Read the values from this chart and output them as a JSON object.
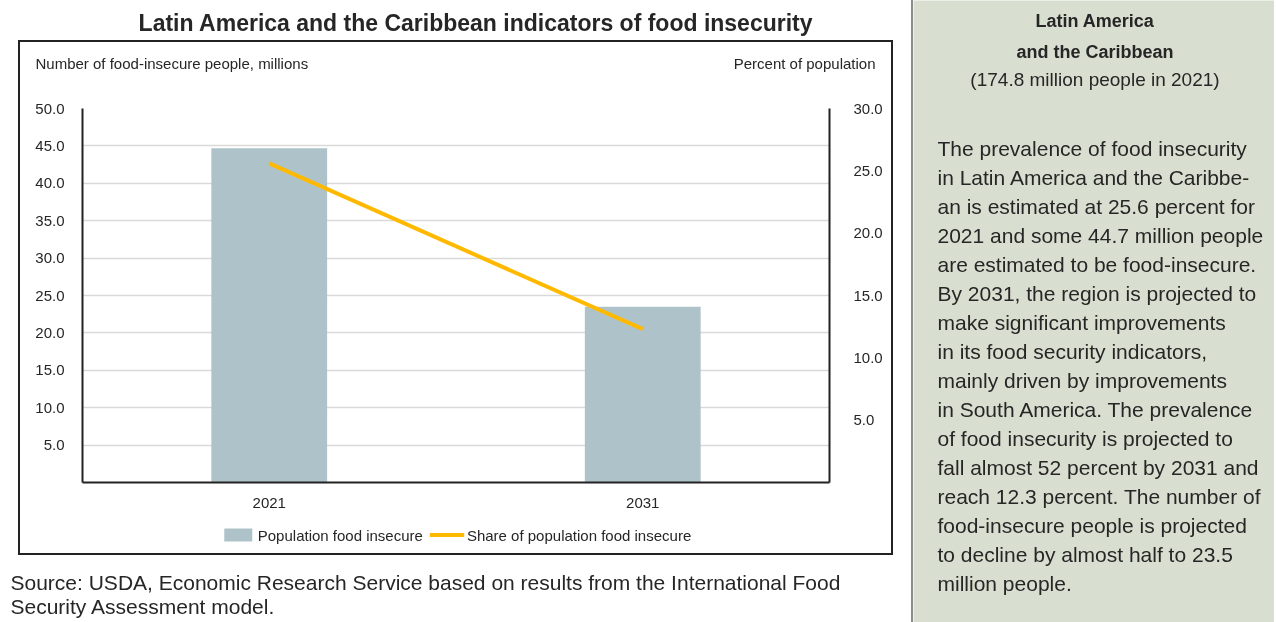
{
  "chart_data": [
    {
      "type": "bar",
      "title": "Latin America and the Caribbean indicators of food insecurity",
      "ylabel": "Number of food-insecure people, millions",
      "y2label": "Percent of population",
      "categories": [
        "2021",
        "2031"
      ],
      "series": [
        {
          "name": "Population food insecure",
          "color": "#adc3c9",
          "values": [
            44.7,
            23.5
          ]
        },
        {
          "name": "Share of population food insecure",
          "type": "line",
          "axis": "y2",
          "color": "#ffb900",
          "values": [
            25.6,
            12.3
          ]
        }
      ],
      "ylim": [
        0,
        50
      ],
      "yticks": [
        {
          "value": 5,
          "label": "5.0"
        },
        {
          "value": 10,
          "label": "10.0"
        },
        {
          "value": 15,
          "label": "15.0"
        },
        {
          "value": 20,
          "label": "20.0"
        },
        {
          "value": 25,
          "label": "25.0"
        },
        {
          "value": 30,
          "label": "30.0"
        },
        {
          "value": 35,
          "label": "35.0"
        },
        {
          "value": 40,
          "label": "40.0"
        },
        {
          "value": 45,
          "label": "45.0"
        },
        {
          "value": 50,
          "label": "50.0"
        }
      ],
      "y2lim": [
        0,
        30
      ],
      "y2ticks": [
        {
          "value": 5,
          "label": "5.0"
        },
        {
          "value": 10,
          "label": "10.0"
        },
        {
          "value": 15,
          "label": "15.0"
        },
        {
          "value": 20,
          "label": "20.0"
        },
        {
          "value": 25,
          "label": "25.0"
        },
        {
          "value": 30,
          "label": "30.0"
        }
      ],
      "grid": "y",
      "legend": "bottom",
      "annotations": [
        "Source: USDA, Economic Research Service based on results from the International Food Security Assessment model."
      ]
    },
    {
      "type": "other",
      "title": "Latin America\nand the Caribbean",
      "subtitle": "(174.8 million people in 2021)",
      "annotations": [
        "The prevalence of food insecurity\nin Latin America and the Caribbe-\nan is estimated at 25.6 percent for\n2021 and some 44.7 million people\nare estimated to be food-insecure.\nBy 2031, the region is projected to\nmake significant improvements\nin its food security indicators,\nmainly driven by improvements\nin South America. The prevalence\nof food insecurity is projected to\nfall almost 52 percent by 2031 and\nreach 12.3 percent. The number of\nfood-insecure people is projected\nto decline by almost half to 23.5\nmillion people."
      ]
    }
  ]
}
